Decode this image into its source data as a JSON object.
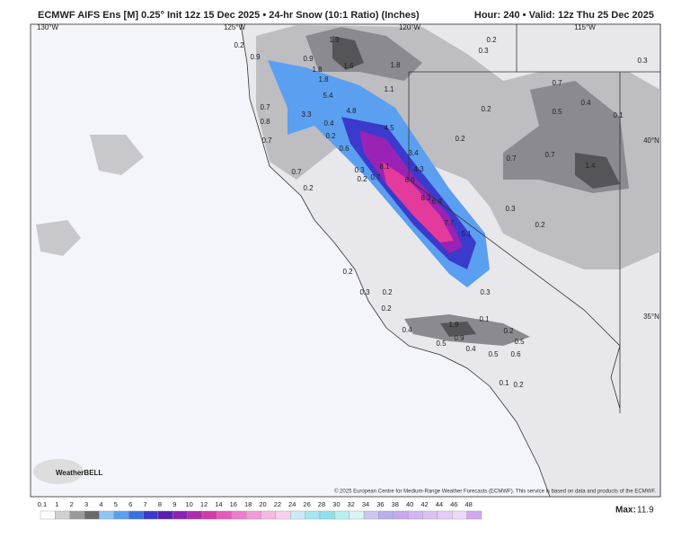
{
  "header": {
    "title": "ECMWF AIFS Ens [M] 0.25° Init 12z 15 Dec 2025 • 24-hr Snow (10:1 Ratio) (Inches)",
    "valid": "Hour: 240 • Valid: 12z Thu 25 Dec 2025"
  },
  "geo_labels": [
    "130°W",
    "125°W",
    "120°W",
    "115°W",
    "40°N",
    "35°N"
  ],
  "map_values": [
    "0.2",
    "1.9",
    "0.9",
    "0.9",
    "1.6",
    "1.8",
    "1.8",
    "1.8",
    "1.1",
    "5.4",
    "0.7",
    "3.3",
    "4.8",
    "0.8",
    "4.5",
    "0.4",
    "0.2",
    "0.7",
    "0.6",
    "3.4",
    "8.1",
    "4.3",
    "0.3",
    "0.2",
    "0.7",
    "8.0",
    "0.7",
    "0.2",
    "8.3",
    "6.4",
    "7.7",
    "5.1",
    "0.2",
    "0.3",
    "0.3",
    "0.7",
    "0.4",
    "0.5",
    "0.1",
    "0.2",
    "0.2",
    "0.7",
    "0.7",
    "1.4",
    "0.3",
    "0.2",
    "0.3",
    "0.2",
    "0.3",
    "0.2",
    "0.2",
    "1.9",
    "0.1",
    "0.2",
    "0.4",
    "0.5",
    "0.9",
    "0.5",
    "0.4",
    "0.5",
    "0.6",
    "0.1",
    "0.2"
  ],
  "logo": "WeatherBELL",
  "copyright": "© 2025 European Centre for Medium-Range Weather Forecasts (ECMWF). This service is based on data and products of the ECMWF.",
  "colorbar": [
    "0.1",
    "1",
    "2",
    "3",
    "4",
    "5",
    "6",
    "7",
    "8",
    "9",
    "10",
    "12",
    "14",
    "16",
    "18",
    "20",
    "22",
    "24",
    "26",
    "28",
    "30",
    "32",
    "34",
    "36",
    "38",
    "40",
    "42",
    "44",
    "46",
    "48"
  ],
  "footer": {
    "max_label": "Max:",
    "max_value": "11.9"
  }
}
